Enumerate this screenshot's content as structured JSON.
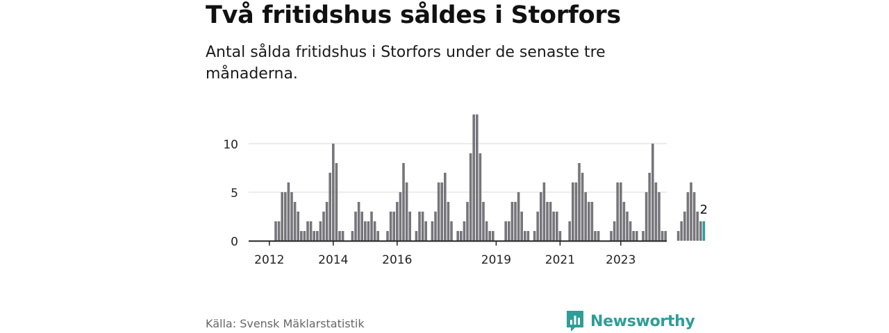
{
  "title": "Två fritidshus såldes i Storfors",
  "subtitle": "Antal sålda fritidshus i Storfors under de senaste tre månaderna.",
  "source": "Källa: Svensk Mäklarstatistik",
  "brand": "Newsworthy",
  "colors": {
    "bar": "#76757b",
    "highlight": "#2e9e96",
    "grid": "#d9d9d9",
    "axis": "#222222",
    "brand": "#2e9e96"
  },
  "chart_data": {
    "type": "bar",
    "ylim": [
      0,
      13
    ],
    "yticks": [
      0,
      5,
      10
    ],
    "grid": true,
    "xticks": [
      {
        "label": "2012",
        "index": 0
      },
      {
        "label": "2014",
        "index": 20
      },
      {
        "label": "2016",
        "index": 40
      },
      {
        "label": "2019",
        "index": 71
      },
      {
        "label": "2021",
        "index": 91
      },
      {
        "label": "2023",
        "index": 110
      }
    ],
    "values": [
      0,
      0,
      2,
      2,
      5,
      5,
      6,
      5,
      4,
      3,
      1,
      1,
      2,
      2,
      1,
      1,
      2,
      3,
      4,
      7,
      10,
      8,
      1,
      1,
      0,
      0,
      1,
      3,
      4,
      3,
      2,
      2,
      3,
      2,
      1,
      0,
      0,
      1,
      3,
      3,
      4,
      5,
      8,
      6,
      3,
      0,
      1,
      3,
      3,
      2,
      0,
      2,
      3,
      6,
      6,
      7,
      4,
      2,
      0,
      1,
      1,
      2,
      4,
      9,
      13,
      13,
      9,
      4,
      2,
      1,
      1,
      0,
      0,
      0,
      2,
      2,
      4,
      4,
      5,
      3,
      1,
      1,
      0,
      1,
      3,
      5,
      6,
      4,
      4,
      3,
      3,
      1,
      0,
      0,
      2,
      6,
      6,
      8,
      7,
      5,
      4,
      4,
      1,
      1,
      0,
      0,
      0,
      1,
      2,
      6,
      6,
      4,
      3,
      2,
      1,
      1,
      0,
      1,
      5,
      7,
      10,
      6,
      5,
      1,
      1,
      0,
      0,
      0,
      1,
      2,
      3,
      5,
      6,
      5,
      3,
      2,
      2
    ],
    "highlight_last": 1,
    "last_label": "2"
  }
}
